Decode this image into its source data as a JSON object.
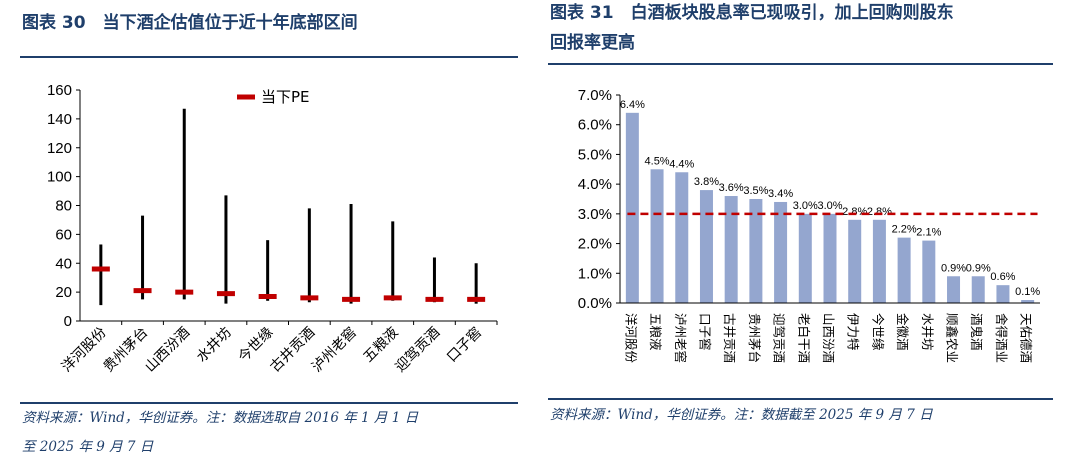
{
  "left": {
    "figure_title": "图表 30　当下酒企估值位于近十年底部区间",
    "source_note_line1": "资料来源：Wind，华创证券。注：数据选取自 2016 年 1 月 1 日",
    "source_note_line2": "至 2025 年 9 月 7 日"
  },
  "right": {
    "figure_title_line1": "图表 31　白酒板块股息率已现吸引，加上回购则股东",
    "figure_title_line2": "回报率更高",
    "source_note": "资料来源：Wind，华创证券。注：数据截至 2025 年 9 月 7 日"
  },
  "chart_data": [
    {
      "type": "range",
      "title": "",
      "categories": [
        "洋河股份",
        "贵州茅台",
        "山西汾酒",
        "水井坊",
        "今世缘",
        "古井贡酒",
        "泸州老窖",
        "五粮液",
        "迎驾贡酒",
        "口子窖"
      ],
      "series": [
        {
          "name": "",
          "kind": "range",
          "low": [
            11,
            15,
            15,
            12,
            14,
            13,
            12,
            14,
            13,
            12
          ],
          "high": [
            53,
            73,
            147,
            87,
            56,
            78,
            81,
            69,
            44,
            40
          ]
        },
        {
          "name": "当下PE",
          "kind": "marker",
          "values": [
            36,
            21,
            20,
            19,
            17,
            16,
            15,
            16,
            15,
            15
          ]
        }
      ],
      "ylim": [
        0,
        160
      ],
      "yticks": [
        0,
        20,
        40,
        60,
        80,
        100,
        120,
        140,
        160
      ],
      "legend_position": "top",
      "grid": false,
      "colors": {
        "range": "#000000",
        "marker": "#c00000"
      }
    },
    {
      "type": "bar",
      "title": "",
      "categories": [
        "洋河股份",
        "五粮液",
        "泸州老窖",
        "口子窖",
        "古井贡酒",
        "贵州茅台",
        "迎驾贡酒",
        "老白干酒",
        "山西汾酒",
        "伊力特",
        "今世缘",
        "金徽酒",
        "水井坊",
        "顺鑫农业",
        "酒鬼酒",
        "舍得酒业",
        "天佑德酒"
      ],
      "values": [
        6.4,
        4.5,
        4.4,
        3.8,
        3.6,
        3.5,
        3.4,
        3.0,
        3.0,
        2.8,
        2.8,
        2.2,
        2.1,
        0.9,
        0.9,
        0.6,
        0.1
      ],
      "data_labels": [
        "6.4%",
        "4.5%",
        "4.4%",
        "3.8%",
        "3.6%",
        "3.5%",
        "3.4%",
        "3.0%",
        "3.0%",
        "2.8%",
        "2.8%",
        "2.2%",
        "2.1%",
        "0.9%",
        "0.9%",
        "0.6%",
        "0.1%"
      ],
      "reference_line": 3.0,
      "ylim": [
        0,
        7
      ],
      "yticks": [
        "0.0%",
        "1.0%",
        "2.0%",
        "3.0%",
        "4.0%",
        "5.0%",
        "6.0%",
        "7.0%"
      ],
      "grid": false,
      "colors": {
        "bar": "#94a6cf",
        "reference_line": "#c00000"
      }
    }
  ]
}
